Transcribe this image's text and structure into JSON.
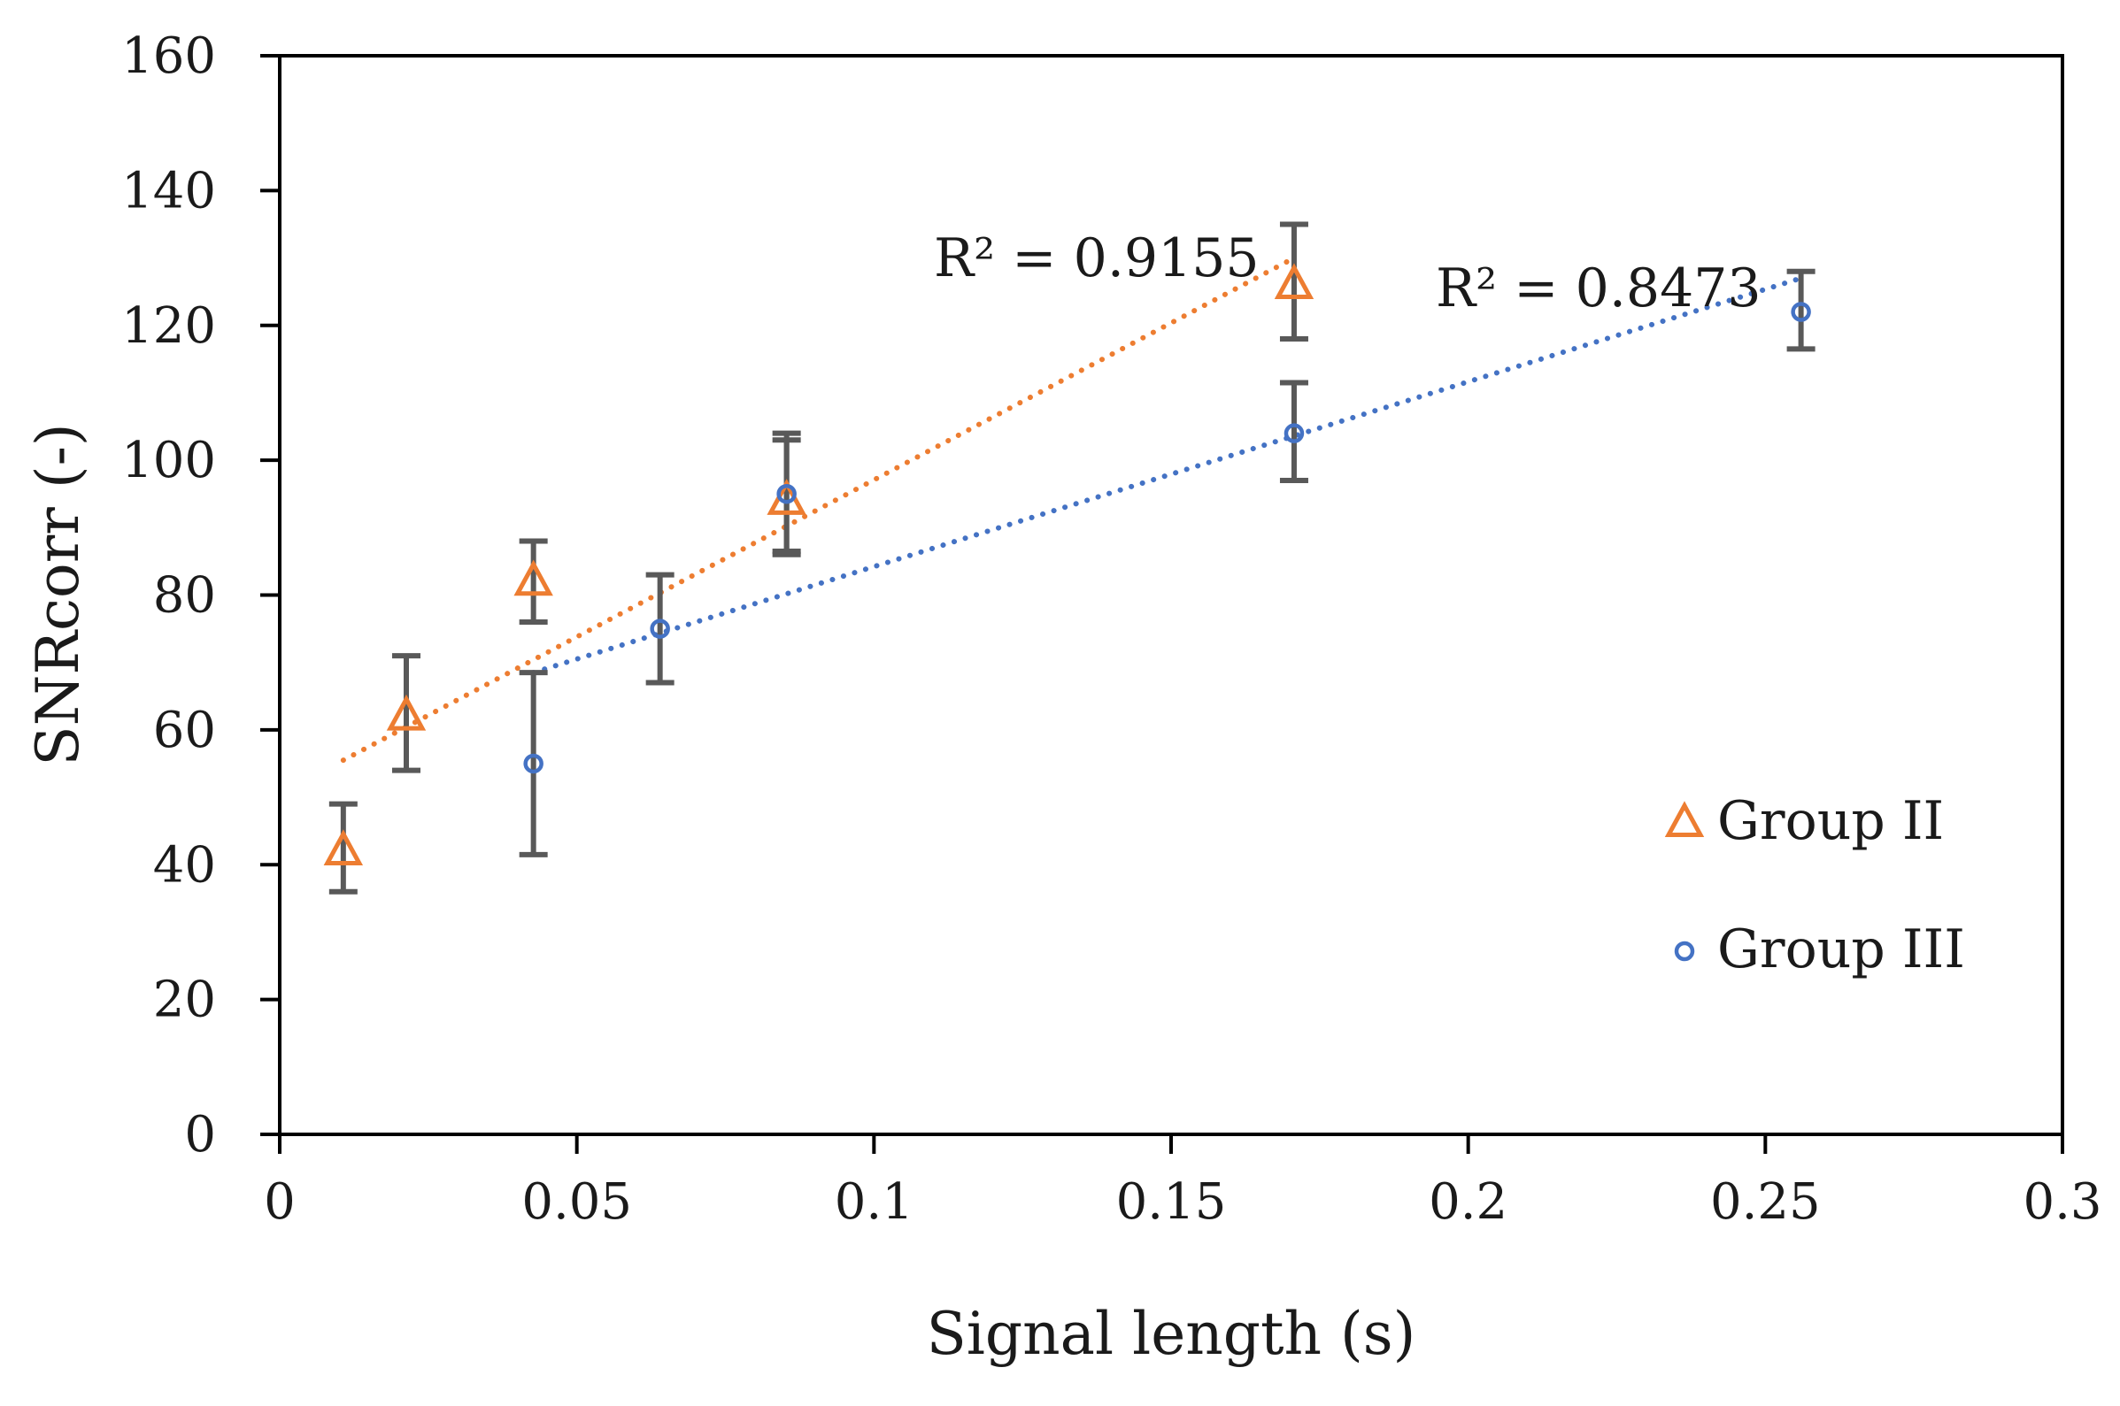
{
  "chart_data": {
    "type": "scatter",
    "title": "",
    "xlabel": "Signal length (s)",
    "ylabel": "SNRcorr (-)",
    "xlim": [
      0,
      0.3
    ],
    "ylim": [
      0,
      160
    ],
    "x_ticks": [
      0,
      0.05,
      0.1,
      0.15,
      0.2,
      0.25,
      0.3
    ],
    "x_tick_labels": [
      "0",
      "0.05",
      "0.1",
      "0.15",
      "0.2",
      "0.25",
      "0.3"
    ],
    "y_ticks": [
      0,
      20,
      40,
      60,
      80,
      100,
      120,
      140,
      160
    ],
    "y_tick_labels": [
      "0",
      "20",
      "40",
      "60",
      "80",
      "100",
      "120",
      "140",
      "160"
    ],
    "grid": false,
    "legend_position": "right-middle",
    "series": [
      {
        "name": "Group II",
        "marker": "triangle",
        "color": "#ED7D31",
        "x": [
          0.0107,
          0.0213,
          0.0427,
          0.0853,
          0.1707
        ],
        "y": [
          42,
          62,
          82,
          94,
          126
        ],
        "err_low": [
          36,
          54,
          76,
          86,
          118
        ],
        "err_high": [
          49,
          71,
          88,
          103,
          135
        ],
        "trendline": {
          "type": "linear",
          "x0": 0.0107,
          "y0": 55.5,
          "x1": 0.1707,
          "y1": 130,
          "r2_label": "R² = 0.9155"
        }
      },
      {
        "name": "Group III",
        "marker": "circle",
        "color": "#4472C4",
        "x": [
          0.0427,
          0.064,
          0.0853,
          0.1707,
          0.256
        ],
        "y": [
          55,
          75,
          95,
          104,
          122
        ],
        "err_low": [
          41.5,
          67,
          86.5,
          97,
          116.5
        ],
        "err_high": [
          68.5,
          83,
          104,
          111.5,
          128
        ],
        "trendline": {
          "type": "linear",
          "x0": 0.0427,
          "y0": 68.5,
          "x1": 0.256,
          "y1": 127,
          "r2_label": "R² = 0.8473"
        }
      }
    ],
    "colors": {
      "error_bar": "#595959",
      "axis": "#000000"
    }
  }
}
